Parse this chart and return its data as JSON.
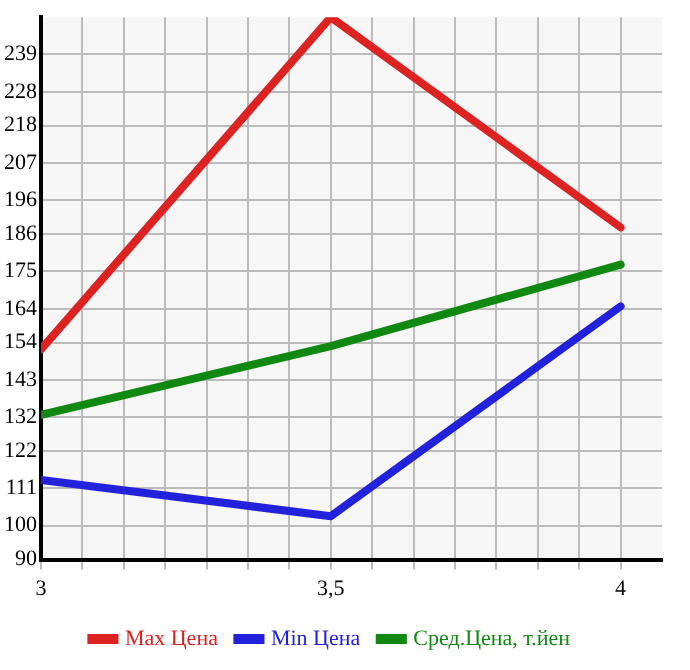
{
  "chart_data": {
    "type": "line",
    "x": [
      3,
      3.5,
      4
    ],
    "series": [
      {
        "name": "Max Цена",
        "color": "#dd2222",
        "values": [
          152,
          250,
          188
        ]
      },
      {
        "name": "Min Цена",
        "color": "#2222dd",
        "values": [
          113.5,
          102.8,
          164.7
        ]
      },
      {
        "name": "Сред.Цена, т.йен",
        "color": "#118811",
        "values": [
          132.7,
          153,
          177
        ]
      }
    ],
    "xlim": [
      3,
      4.0714
    ],
    "xticks": [
      3,
      {
        "value": 3.0714,
        "label": null
      },
      {
        "value": 3.1429,
        "label": null
      },
      {
        "value": 3.2143,
        "label": null
      },
      {
        "value": 3.2857,
        "label": null
      },
      {
        "value": 3.3571,
        "label": null
      },
      {
        "value": 3.4286,
        "label": null
      },
      {
        "value": 3.5,
        "label": "3,5"
      },
      {
        "value": 3.5714,
        "label": null
      },
      {
        "value": 3.6429,
        "label": null
      },
      {
        "value": 3.7143,
        "label": null
      },
      {
        "value": 3.7857,
        "label": null
      },
      {
        "value": 3.8571,
        "label": null
      },
      {
        "value": 3.9286,
        "label": null
      },
      4
    ],
    "ylim": [
      90,
      250
    ],
    "yticks": [
      90,
      100,
      111,
      122,
      132,
      143,
      154,
      164,
      175,
      186,
      196,
      207,
      218,
      228,
      239
    ],
    "grid": true,
    "legend": "bottom",
    "marker": "none",
    "line_style": "solid"
  }
}
